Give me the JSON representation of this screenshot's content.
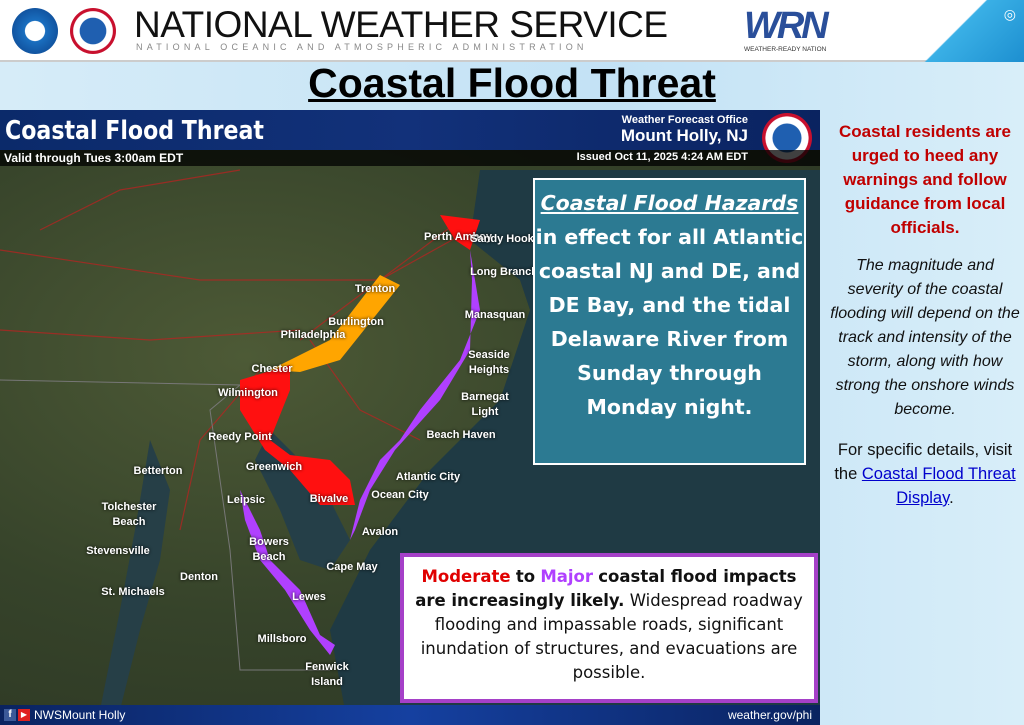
{
  "header": {
    "org": "NATIONAL WEATHER SERVICE",
    "subtitle": "NATIONAL OCEANIC AND ATMOSPHERIC ADMINISTRATION",
    "wrn_logo": "WRN",
    "wrn_sub": "WEATHER-READY NATION",
    "noaa_logo": "NOAA"
  },
  "title": "Coastal Flood Threat",
  "map": {
    "title": "Coastal Flood Threat",
    "valid": "Valid through Tues 3:00am EDT",
    "office_label": "Weather Forecast Office",
    "office": "Mount Holly, NJ",
    "issued": "Issued Oct 11, 2025 4:24 AM EDT",
    "colors": {
      "moderate": "#ff1010",
      "major": "#b040ff",
      "minor": "#ffa500"
    },
    "places": [
      "Perth Amboy",
      "Sandy Hook",
      "Long Branch",
      "Manasquan",
      "Seaside Heights",
      "Barnegat Light",
      "Beach Haven",
      "Atlantic City",
      "Ocean City",
      "Avalon",
      "Cape May",
      "Trenton",
      "Burlington",
      "Philadelphia",
      "Chester",
      "Wilmington",
      "Reedy Point",
      "Greenwich",
      "Bivalve",
      "Betterton",
      "Tolchester Beach",
      "Stevensville",
      "Leipsic",
      "Bowers Beach",
      "Denton",
      "St. Michaels",
      "Lewes",
      "Millsboro",
      "Fenwick Island"
    ],
    "hazard_box": {
      "heading": "Coastal Flood Hazards",
      "text": "in effect for all Atlantic coastal NJ and DE, and DE Bay, and the tidal Delaware River from Sunday through Monday night."
    },
    "impact_box": {
      "moderate": "Moderate",
      "to": "to",
      "major": "Major",
      "bold_rest": "coastal flood impacts are increasingly likely.",
      "text": "Widespread roadway flooding and impassable roads, significant inundation of structures, and evacuations are possible."
    },
    "footer": {
      "social": "NWSMount Holly",
      "site": "weather.gov/phi"
    }
  },
  "side": {
    "warning": "Coastal residents are urged to heed any warnings and follow guidance from local officials.",
    "magnitude": "The magnitude and severity of the coastal flooding will depend on the track and intensity of the storm, along with how strong the onshore winds become.",
    "details_pre": "For specific details, visit the",
    "link": "Coastal Flood Threat Display",
    "details_post": "."
  }
}
